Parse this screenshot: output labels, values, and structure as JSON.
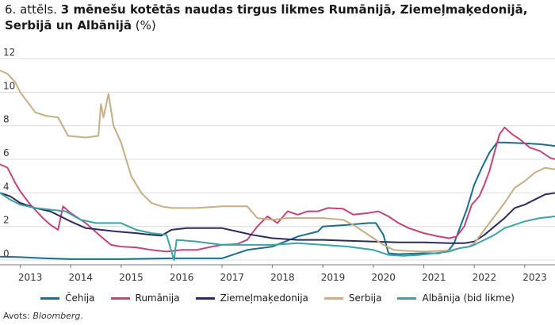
{
  "title": {
    "number": "6. attēls.",
    "main": "3 mēnešu kotētās naudas tirgus likmes Rumānijā, Ziemeļmaķedonijā, Serbijā un Albānijā",
    "unit": "(%)"
  },
  "source": {
    "label": "Avots:",
    "name": "Bloomberg",
    "end": "."
  },
  "chart_data": {
    "type": "line",
    "title": "3 mēnešu kotētās naudas tirgus likmes Rumānijā, Ziemeļmaķedonijā, Serbijā un Albānijā",
    "xlabel": "",
    "ylabel": "%",
    "xlim": [
      2012.6,
      2023.6
    ],
    "ylim": [
      0,
      12
    ],
    "x_ticks": [
      "2013",
      "2014",
      "2015",
      "2016",
      "2017",
      "2018",
      "2019",
      "2020",
      "2021",
      "2022",
      "2023"
    ],
    "y_ticks": [
      0,
      2,
      4,
      6,
      8,
      10,
      12
    ],
    "grid": "horizontal",
    "legend_position": "bottom",
    "series": [
      {
        "name": "Čehija",
        "color": "#1a6e8e",
        "points": [
          [
            2012.6,
            0.2
          ],
          [
            2013.0,
            0.17
          ],
          [
            2013.5,
            0.1
          ],
          [
            2014.0,
            0.05
          ],
          [
            2015.0,
            0.05
          ],
          [
            2016.0,
            0.1
          ],
          [
            2017.0,
            0.1
          ],
          [
            2017.5,
            0.6
          ],
          [
            2018.0,
            0.8
          ],
          [
            2018.5,
            1.4
          ],
          [
            2018.9,
            1.7
          ],
          [
            2019.0,
            2.0
          ],
          [
            2019.5,
            2.1
          ],
          [
            2019.9,
            2.2
          ],
          [
            2020.05,
            2.2
          ],
          [
            2020.2,
            1.5
          ],
          [
            2020.3,
            0.4
          ],
          [
            2020.5,
            0.35
          ],
          [
            2021.0,
            0.4
          ],
          [
            2021.3,
            0.4
          ],
          [
            2021.5,
            0.6
          ],
          [
            2021.6,
            1.0
          ],
          [
            2021.7,
            1.8
          ],
          [
            2021.85,
            3.0
          ],
          [
            2022.0,
            4.5
          ],
          [
            2022.15,
            5.5
          ],
          [
            2022.3,
            6.4
          ],
          [
            2022.45,
            7.0
          ],
          [
            2022.6,
            7.0
          ],
          [
            2023.0,
            6.95
          ],
          [
            2023.3,
            6.9
          ],
          [
            2023.6,
            6.8
          ]
        ]
      },
      {
        "name": "Rumānija",
        "color": "#c4447a",
        "points": [
          [
            2012.6,
            5.7
          ],
          [
            2012.75,
            5.5
          ],
          [
            2012.9,
            4.6
          ],
          [
            2013.0,
            4.1
          ],
          [
            2013.2,
            3.3
          ],
          [
            2013.45,
            2.5
          ],
          [
            2013.6,
            2.1
          ],
          [
            2013.75,
            1.8
          ],
          [
            2013.85,
            3.2
          ],
          [
            2014.0,
            2.8
          ],
          [
            2014.3,
            2.2
          ],
          [
            2014.6,
            1.4
          ],
          [
            2014.8,
            0.9
          ],
          [
            2015.0,
            0.8
          ],
          [
            2015.3,
            0.75
          ],
          [
            2015.6,
            0.6
          ],
          [
            2015.9,
            0.5
          ],
          [
            2016.2,
            0.6
          ],
          [
            2016.5,
            0.6
          ],
          [
            2016.8,
            0.8
          ],
          [
            2017.0,
            0.9
          ],
          [
            2017.3,
            0.95
          ],
          [
            2017.5,
            1.2
          ],
          [
            2017.7,
            2.0
          ],
          [
            2017.9,
            2.6
          ],
          [
            2018.1,
            2.2
          ],
          [
            2018.3,
            2.9
          ],
          [
            2018.5,
            2.7
          ],
          [
            2018.7,
            2.9
          ],
          [
            2018.9,
            2.9
          ],
          [
            2019.1,
            3.1
          ],
          [
            2019.4,
            3.05
          ],
          [
            2019.6,
            2.7
          ],
          [
            2019.9,
            2.8
          ],
          [
            2020.1,
            2.9
          ],
          [
            2020.3,
            2.6
          ],
          [
            2020.5,
            2.2
          ],
          [
            2020.7,
            1.9
          ],
          [
            2020.9,
            1.7
          ],
          [
            2021.0,
            1.6
          ],
          [
            2021.3,
            1.4
          ],
          [
            2021.5,
            1.3
          ],
          [
            2021.65,
            1.4
          ],
          [
            2021.8,
            2.0
          ],
          [
            2021.95,
            3.3
          ],
          [
            2022.1,
            3.8
          ],
          [
            2022.2,
            4.5
          ],
          [
            2022.3,
            5.3
          ],
          [
            2022.4,
            6.4
          ],
          [
            2022.5,
            7.5
          ],
          [
            2022.6,
            7.9
          ],
          [
            2022.75,
            7.5
          ],
          [
            2022.9,
            7.2
          ],
          [
            2023.1,
            6.7
          ],
          [
            2023.3,
            6.5
          ],
          [
            2023.5,
            6.1
          ],
          [
            2023.6,
            6.0
          ]
        ]
      },
      {
        "name": "Ziemeļmaķedonija",
        "color": "#2c2b5e",
        "points": [
          [
            2012.6,
            4.0
          ],
          [
            2012.8,
            3.8
          ],
          [
            2013.0,
            3.4
          ],
          [
            2013.3,
            3.1
          ],
          [
            2013.6,
            2.9
          ],
          [
            2014.0,
            2.3
          ],
          [
            2014.3,
            1.9
          ],
          [
            2014.6,
            1.8
          ],
          [
            2014.9,
            1.7
          ],
          [
            2015.3,
            1.6
          ],
          [
            2015.6,
            1.5
          ],
          [
            2015.8,
            1.45
          ],
          [
            2016.0,
            1.8
          ],
          [
            2016.3,
            1.9
          ],
          [
            2016.6,
            1.9
          ],
          [
            2017.0,
            1.9
          ],
          [
            2017.3,
            1.7
          ],
          [
            2017.6,
            1.5
          ],
          [
            2018.0,
            1.3
          ],
          [
            2018.5,
            1.2
          ],
          [
            2019.0,
            1.2
          ],
          [
            2019.5,
            1.15
          ],
          [
            2020.0,
            1.1
          ],
          [
            2020.5,
            1.05
          ],
          [
            2021.0,
            1.05
          ],
          [
            2021.5,
            1.0
          ],
          [
            2021.8,
            1.0
          ],
          [
            2022.0,
            1.1
          ],
          [
            2022.2,
            1.5
          ],
          [
            2022.4,
            2.0
          ],
          [
            2022.6,
            2.5
          ],
          [
            2022.8,
            3.1
          ],
          [
            2023.0,
            3.3
          ],
          [
            2023.2,
            3.6
          ],
          [
            2023.4,
            3.9
          ],
          [
            2023.6,
            4.0
          ]
        ]
      },
      {
        "name": "Serbija",
        "color": "#c8ad86",
        "points": [
          [
            2012.6,
            11.3
          ],
          [
            2012.75,
            11.1
          ],
          [
            2012.9,
            10.6
          ],
          [
            2013.0,
            10.0
          ],
          [
            2013.15,
            9.4
          ],
          [
            2013.3,
            8.8
          ],
          [
            2013.5,
            8.6
          ],
          [
            2013.75,
            8.5
          ],
          [
            2013.95,
            7.4
          ],
          [
            2014.3,
            7.3
          ],
          [
            2014.55,
            7.4
          ],
          [
            2014.6,
            9.3
          ],
          [
            2014.65,
            8.5
          ],
          [
            2014.75,
            9.9
          ],
          [
            2014.85,
            8.0
          ],
          [
            2015.0,
            7.0
          ],
          [
            2015.2,
            5.0
          ],
          [
            2015.4,
            4.0
          ],
          [
            2015.6,
            3.4
          ],
          [
            2015.8,
            3.2
          ],
          [
            2016.0,
            3.1
          ],
          [
            2016.5,
            3.1
          ],
          [
            2017.0,
            3.2
          ],
          [
            2017.5,
            3.2
          ],
          [
            2017.7,
            2.5
          ],
          [
            2018.0,
            2.4
          ],
          [
            2018.3,
            2.5
          ],
          [
            2018.6,
            2.5
          ],
          [
            2019.0,
            2.5
          ],
          [
            2019.4,
            2.4
          ],
          [
            2019.6,
            2.1
          ],
          [
            2019.8,
            1.7
          ],
          [
            2020.0,
            1.3
          ],
          [
            2020.2,
            0.9
          ],
          [
            2020.4,
            0.6
          ],
          [
            2020.6,
            0.55
          ],
          [
            2021.0,
            0.5
          ],
          [
            2021.3,
            0.55
          ],
          [
            2021.5,
            0.55
          ],
          [
            2021.7,
            0.7
          ],
          [
            2021.9,
            0.8
          ],
          [
            2022.0,
            1.0
          ],
          [
            2022.2,
            1.8
          ],
          [
            2022.4,
            2.6
          ],
          [
            2022.6,
            3.4
          ],
          [
            2022.8,
            4.3
          ],
          [
            2023.0,
            4.7
          ],
          [
            2023.2,
            5.2
          ],
          [
            2023.4,
            5.5
          ],
          [
            2023.6,
            5.4
          ]
        ]
      },
      {
        "name": "Albānija (bid likme)",
        "color": "#3aa3a4",
        "points": [
          [
            2012.6,
            4.0
          ],
          [
            2012.8,
            3.6
          ],
          [
            2013.0,
            3.3
          ],
          [
            2013.3,
            3.1
          ],
          [
            2013.6,
            3.0
          ],
          [
            2013.9,
            2.9
          ],
          [
            2014.2,
            2.4
          ],
          [
            2014.5,
            2.2
          ],
          [
            2014.8,
            2.2
          ],
          [
            2015.0,
            2.2
          ],
          [
            2015.3,
            1.8
          ],
          [
            2015.6,
            1.6
          ],
          [
            2015.9,
            1.5
          ],
          [
            2016.05,
            0.0
          ],
          [
            2016.1,
            1.2
          ],
          [
            2016.5,
            1.1
          ],
          [
            2017.0,
            0.9
          ],
          [
            2017.5,
            0.9
          ],
          [
            2018.0,
            0.9
          ],
          [
            2018.5,
            1.0
          ],
          [
            2019.0,
            0.9
          ],
          [
            2019.5,
            0.8
          ],
          [
            2020.0,
            0.6
          ],
          [
            2020.3,
            0.3
          ],
          [
            2020.6,
            0.25
          ],
          [
            2020.9,
            0.3
          ],
          [
            2021.2,
            0.4
          ],
          [
            2021.5,
            0.5
          ],
          [
            2021.7,
            0.7
          ],
          [
            2021.9,
            0.8
          ],
          [
            2022.0,
            0.9
          ],
          [
            2022.2,
            1.2
          ],
          [
            2022.4,
            1.5
          ],
          [
            2022.6,
            1.9
          ],
          [
            2022.8,
            2.1
          ],
          [
            2023.0,
            2.3
          ],
          [
            2023.3,
            2.5
          ],
          [
            2023.6,
            2.6
          ]
        ]
      }
    ]
  }
}
